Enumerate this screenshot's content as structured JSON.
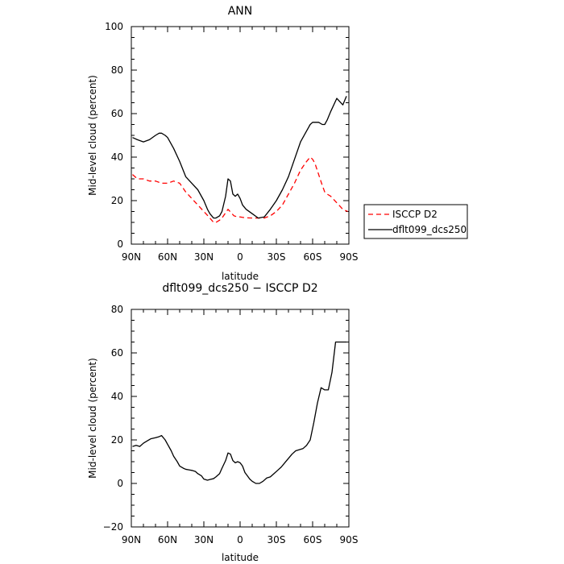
{
  "chart_data": [
    {
      "type": "line",
      "title": "ANN",
      "xlabel": "latitude",
      "ylabel": "Mid-level cloud (percent)",
      "x_ticks": [
        "90N",
        "60N",
        "30N",
        "0",
        "30S",
        "60S",
        "90S"
      ],
      "x_range": [
        90,
        -90
      ],
      "ylim": [
        0,
        100
      ],
      "y_ticks": [
        "0",
        "20",
        "40",
        "60",
        "80",
        "100"
      ],
      "grid": false,
      "legend_position": "right",
      "series": [
        {
          "name": "ISCCP D2",
          "color": "#ff0000",
          "dash": "dashed",
          "x": [
            89,
            85,
            80,
            75,
            70,
            65,
            60,
            55,
            50,
            45,
            40,
            35,
            30,
            25,
            22,
            20,
            17,
            15,
            10,
            5,
            2,
            0,
            -2,
            -5,
            -10,
            -15,
            -20,
            -25,
            -30,
            -35,
            -40,
            -45,
            -50,
            -55,
            -58,
            -60,
            -62,
            -65,
            -68,
            -70,
            -72,
            -75,
            -80,
            -85,
            -89
          ],
          "y": [
            32,
            30,
            30,
            29,
            29,
            28,
            28,
            29,
            28,
            24,
            21,
            18,
            15,
            12,
            10,
            10,
            11,
            12,
            16,
            13,
            12.5,
            12.5,
            12.3,
            12.1,
            12,
            12,
            12,
            13,
            15,
            18,
            23,
            28,
            34,
            38,
            40,
            39,
            37,
            32,
            27,
            24,
            23,
            22,
            19,
            16,
            15
          ]
        },
        {
          "name": "dflt099_dcs250",
          "color": "#000000",
          "dash": "solid",
          "x": [
            89,
            85,
            80,
            75,
            70,
            67,
            65,
            62,
            60,
            55,
            50,
            45,
            40,
            35,
            30,
            27,
            25,
            22,
            20,
            17,
            15,
            12,
            10,
            8,
            6,
            4,
            2,
            0,
            -2,
            -5,
            -10,
            -15,
            -20,
            -25,
            -30,
            -35,
            -40,
            -45,
            -50,
            -55,
            -58,
            -60,
            -62,
            -65,
            -68,
            -70,
            -72,
            -75,
            -80,
            -85,
            -88
          ],
          "y": [
            49,
            48,
            47,
            48,
            50,
            51,
            51,
            50,
            49,
            44,
            38,
            31,
            28,
            25,
            20,
            16,
            14,
            12,
            12,
            13,
            15,
            22,
            30,
            29,
            23,
            22,
            23,
            21,
            18,
            16,
            14,
            12,
            12.5,
            16,
            20,
            25,
            31,
            39,
            47,
            52,
            55,
            56,
            56,
            56,
            55,
            55,
            57,
            61,
            67,
            64,
            68
          ]
        }
      ]
    },
    {
      "type": "line",
      "title": "dflt099_dcs250 − ISCCP D2",
      "xlabel": "latitude",
      "ylabel": "Mid-level cloud (percent)",
      "x_ticks": [
        "90N",
        "60N",
        "30N",
        "0",
        "30S",
        "60S",
        "90S"
      ],
      "x_range": [
        90,
        -90
      ],
      "ylim": [
        -20,
        80
      ],
      "y_ticks": [
        "−20",
        "0",
        "20",
        "40",
        "60",
        "80"
      ],
      "grid": false,
      "series": [
        {
          "color": "#000000",
          "dash": "solid",
          "x": [
            89,
            86,
            83,
            80,
            77,
            74,
            70,
            67,
            65,
            62,
            60,
            57,
            55,
            52,
            50,
            47,
            45,
            42,
            40,
            37,
            35,
            32,
            30,
            27,
            25,
            22,
            20,
            17,
            15,
            12,
            10,
            8,
            6,
            4,
            2,
            0,
            -2,
            -4,
            -6,
            -8,
            -10,
            -13,
            -16,
            -19,
            -22,
            -25,
            -28,
            -31,
            -34,
            -37,
            -40,
            -43,
            -46,
            -49,
            -52,
            -55,
            -58,
            -61,
            -64,
            -67,
            -70,
            -73,
            -76,
            -79,
            -82,
            -85,
            -88
          ],
          "y": [
            17,
            17.5,
            17,
            18.5,
            19.5,
            20.5,
            21,
            21.5,
            22,
            20,
            18,
            15,
            12.5,
            10,
            8,
            7,
            6.5,
            6.2,
            6,
            5.5,
            4.5,
            3.5,
            2,
            1.5,
            1.8,
            2.2,
            3,
            4.5,
            7,
            10.5,
            14,
            13.5,
            10.5,
            9.5,
            10,
            9.5,
            8,
            5,
            3.5,
            2,
            1,
            0,
            0,
            1,
            2.5,
            3,
            4.5,
            6,
            7.5,
            9.5,
            11.5,
            13.5,
            15,
            15.5,
            16,
            17.5,
            20,
            28,
            37,
            44,
            43,
            43,
            51,
            65,
            65,
            65,
            65
          ]
        }
      ]
    }
  ]
}
